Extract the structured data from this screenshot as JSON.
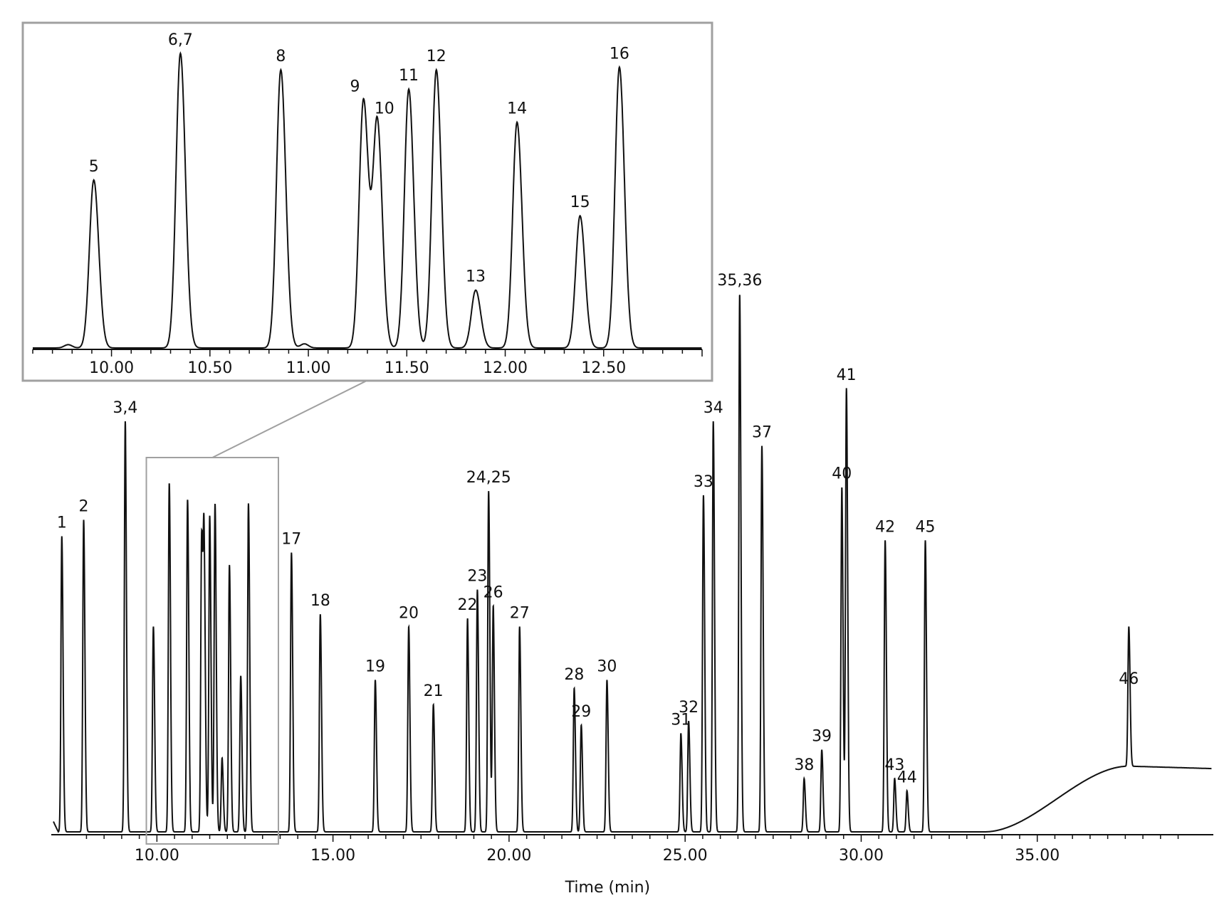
{
  "chart_data": [
    {
      "type": "line",
      "title": "",
      "xlabel": "Time (min)",
      "ylabel": "",
      "xlim": [
        7.0,
        40.0
      ],
      "x_ticks": [
        10,
        15,
        20,
        25,
        30,
        35
      ],
      "x_tick_labels": [
        "10.00",
        "15.00",
        "20.00",
        "25.00",
        "30.00",
        "35.00"
      ],
      "grid": false,
      "colors": {
        "trace": "#111111",
        "zoom_box": "#a0a0a0"
      },
      "zoom_region": {
        "x": [
          9.7,
          13.45
        ]
      },
      "peaks": [
        {
          "label": "1",
          "x": 7.3,
          "y": 72.0
        },
        {
          "label": "2",
          "x": 7.92,
          "y": 76.0
        },
        {
          "label": "3,4",
          "x": 9.1,
          "y": 100.0
        },
        {
          "label": "",
          "x": 9.9,
          "y": 50.0
        },
        {
          "label": "",
          "x": 10.35,
          "y": 85.0
        },
        {
          "label": "",
          "x": 10.87,
          "y": 81.0
        },
        {
          "label": "",
          "x": 11.27,
          "y": 72.0
        },
        {
          "label": "",
          "x": 11.34,
          "y": 66.0
        },
        {
          "label": "",
          "x": 11.5,
          "y": 77.0
        },
        {
          "label": "",
          "x": 11.65,
          "y": 80.0
        },
        {
          "label": "",
          "x": 11.85,
          "y": 18.0
        },
        {
          "label": "",
          "x": 12.06,
          "y": 65.0
        },
        {
          "label": "",
          "x": 12.38,
          "y": 38.0
        },
        {
          "label": "",
          "x": 12.6,
          "y": 80.0
        },
        {
          "label": "17",
          "x": 13.82,
          "y": 68.0
        },
        {
          "label": "18",
          "x": 14.64,
          "y": 53.0
        },
        {
          "label": "19",
          "x": 16.2,
          "y": 37.0
        },
        {
          "label": "20",
          "x": 17.15,
          "y": 50.0
        },
        {
          "label": "21",
          "x": 17.85,
          "y": 31.0
        },
        {
          "label": "22",
          "x": 18.82,
          "y": 52.0
        },
        {
          "label": "23",
          "x": 19.1,
          "y": 59.0
        },
        {
          "label": "24,25",
          "x": 19.42,
          "y": 83.0
        },
        {
          "label": "26",
          "x": 19.55,
          "y": 55.0
        },
        {
          "label": "27",
          "x": 20.3,
          "y": 50.0
        },
        {
          "label": "28",
          "x": 21.85,
          "y": 35.0
        },
        {
          "label": "29",
          "x": 22.05,
          "y": 26.0
        },
        {
          "label": "30",
          "x": 22.78,
          "y": 37.0
        },
        {
          "label": "31",
          "x": 24.88,
          "y": 24.0
        },
        {
          "label": "32",
          "x": 25.1,
          "y": 27.0
        },
        {
          "label": "33",
          "x": 25.52,
          "y": 82.0
        },
        {
          "label": "34",
          "x": 25.8,
          "y": 100.0
        },
        {
          "label": "35,36",
          "x": 26.55,
          "y": 131.0
        },
        {
          "label": "37",
          "x": 27.18,
          "y": 94.0
        },
        {
          "label": "38",
          "x": 28.38,
          "y": 13.0
        },
        {
          "label": "39",
          "x": 28.88,
          "y": 20.0
        },
        {
          "label": "40",
          "x": 29.45,
          "y": 84.0
        },
        {
          "label": "41",
          "x": 29.58,
          "y": 108.0
        },
        {
          "label": "42",
          "x": 30.68,
          "y": 71.0
        },
        {
          "label": "43",
          "x": 30.95,
          "y": 13.0
        },
        {
          "label": "44",
          "x": 31.3,
          "y": 10.0
        },
        {
          "label": "45",
          "x": 31.82,
          "y": 71.0
        },
        {
          "label": "46",
          "x": 37.6,
          "y": 34.0
        }
      ]
    },
    {
      "type": "line",
      "title": "",
      "xlabel": "",
      "ylabel": "",
      "xlim": [
        9.6,
        13.0
      ],
      "x_ticks": [
        10.0,
        10.5,
        11.0,
        11.5,
        12.0,
        12.5
      ],
      "x_tick_labels": [
        "10.00",
        "10.50",
        "11.00",
        "11.50",
        "12.00",
        "12.50"
      ],
      "grid": false,
      "peaks": [
        {
          "label": "5",
          "x": 9.91,
          "y": 61.0
        },
        {
          "label": "6,7",
          "x": 10.35,
          "y": 107.0
        },
        {
          "label": "8",
          "x": 10.86,
          "y": 101.0
        },
        {
          "label": "9",
          "x": 11.28,
          "y": 90.0
        },
        {
          "label": "10",
          "x": 11.35,
          "y": 82.0
        },
        {
          "label": "11",
          "x": 11.51,
          "y": 94.0
        },
        {
          "label": "12",
          "x": 11.65,
          "y": 101.0
        },
        {
          "label": "13",
          "x": 11.85,
          "y": 21.0
        },
        {
          "label": "14",
          "x": 12.06,
          "y": 82.0
        },
        {
          "label": "15",
          "x": 12.38,
          "y": 48.0
        },
        {
          "label": "16",
          "x": 12.58,
          "y": 102.0
        }
      ]
    }
  ]
}
